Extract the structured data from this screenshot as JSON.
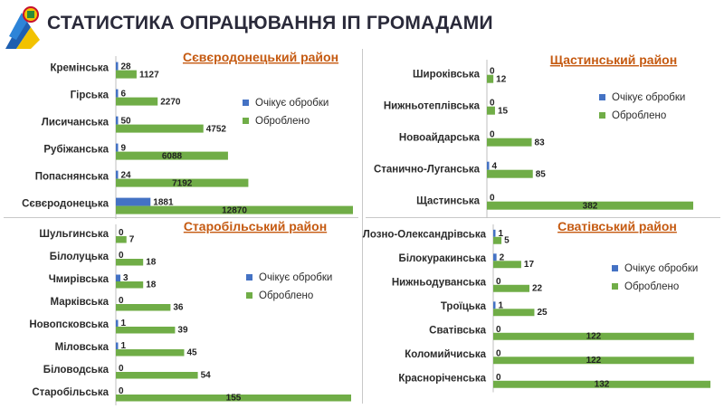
{
  "page": {
    "title": "СТАТИСТИКА ОПРАЦЮВАННЯ ІП ГРОМАДАМИ"
  },
  "colors": {
    "pending": "#4472c4",
    "processed": "#70ad47",
    "district_title": "#c55a11",
    "axis": "#bfbfbf"
  },
  "chart_data": [
    {
      "type": "bar",
      "orientation": "horizontal",
      "title": "Сєвєродонецький район",
      "categories": [
        "Кремінська",
        "Гірська",
        "Лисичанська",
        "Рубіжанська",
        "Попаснянська",
        "Сєвєродонецька"
      ],
      "series": [
        {
          "name": "Очікує обробки",
          "values": [
            28,
            6,
            50,
            9,
            24,
            1881
          ]
        },
        {
          "name": "Оброблено",
          "values": [
            1127,
            2270,
            4752,
            6088,
            7192,
            12870
          ]
        }
      ],
      "legend": "right"
    },
    {
      "type": "bar",
      "orientation": "horizontal",
      "title": "Щастинський район",
      "categories": [
        "Широківська",
        "Нижньотеплівська",
        "Новоайдарська",
        "Станично-Луганська",
        "Щастинська"
      ],
      "series": [
        {
          "name": "Очікує обробки",
          "values": [
            0,
            0,
            0,
            4,
            0
          ]
        },
        {
          "name": "Оброблено",
          "values": [
            12,
            15,
            83,
            85,
            382
          ]
        }
      ],
      "legend": "right"
    },
    {
      "type": "bar",
      "orientation": "horizontal",
      "title": "Старобільський район",
      "categories": [
        "Шульгинська",
        "Білолуцька",
        "Чмирівська",
        "Марківська",
        "Новопсковська",
        "Міловська",
        "Біловодська",
        "Старобільська"
      ],
      "series": [
        {
          "name": "Очікує обробки",
          "values": [
            0,
            0,
            3,
            0,
            1,
            1,
            0,
            0
          ]
        },
        {
          "name": "Оброблено",
          "values": [
            7,
            18,
            18,
            36,
            39,
            45,
            54,
            155
          ]
        }
      ],
      "legend": "right"
    },
    {
      "type": "bar",
      "orientation": "horizontal",
      "title": "Сватівський район",
      "categories": [
        "Лозно-Олександрівська",
        "Білокуракинська",
        "Нижньодуванська",
        "Троїцька",
        "Сватівська",
        "Коломийчиська",
        "Красноріченська"
      ],
      "series": [
        {
          "name": "Очікує обробки",
          "values": [
            1,
            2,
            0,
            1,
            0,
            0,
            0
          ]
        },
        {
          "name": "Оброблено",
          "values": [
            5,
            17,
            22,
            25,
            122,
            122,
            132
          ]
        }
      ],
      "legend": "right"
    }
  ]
}
